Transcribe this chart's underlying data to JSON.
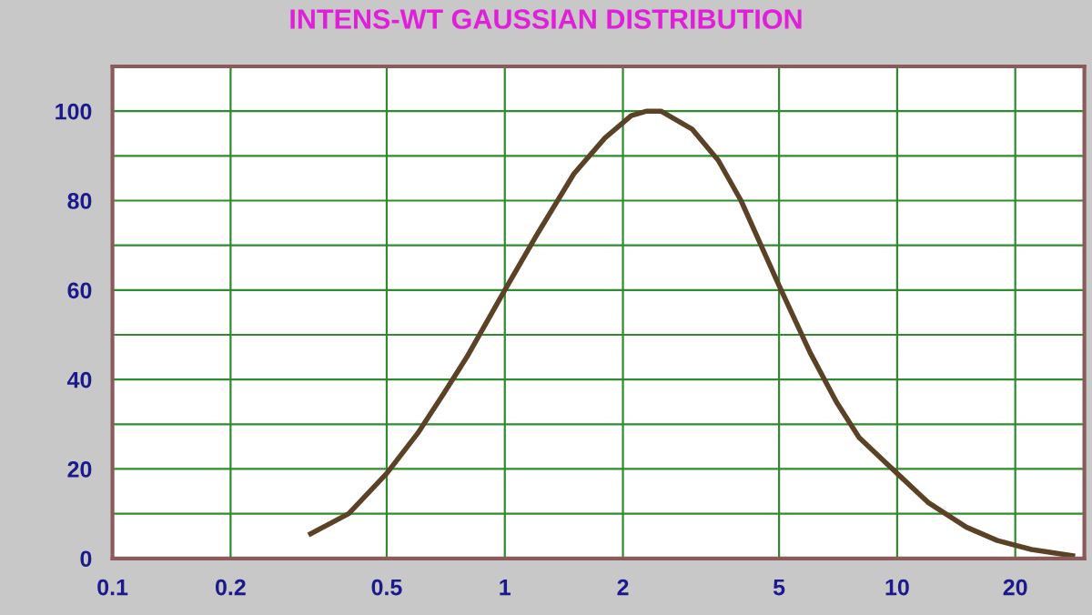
{
  "chart_data": {
    "type": "line",
    "title": "INTENS-WT GAUSSIAN DISTRIBUTION",
    "x": [
      0.32,
      0.4,
      0.5,
      0.6,
      0.7,
      0.8,
      1.0,
      1.2,
      1.5,
      1.8,
      2.1,
      2.3,
      2.5,
      3.0,
      3.5,
      4.0,
      5.0,
      6.0,
      7.0,
      8.0,
      10,
      12,
      15,
      18,
      22,
      28
    ],
    "series": [
      {
        "color": "#5b4226",
        "values": [
          5.5,
          10,
          19,
          28,
          37,
          45,
          60,
          72,
          86,
          94,
          99,
          100,
          100,
          96,
          89,
          80,
          61,
          46,
          35,
          27,
          19,
          12.5,
          7,
          4,
          2,
          0.6
        ]
      }
    ],
    "log": "x",
    "xlim": [
      0.1,
      30
    ],
    "xticks": [
      0.1,
      0.2,
      0.5,
      1,
      2,
      5,
      10,
      20
    ],
    "ylim": [
      0,
      110
    ],
    "yticks": [
      0,
      {
        "value": 10,
        "label": null
      },
      20,
      {
        "value": 30,
        "label": null
      },
      40,
      {
        "value": 50,
        "label": null
      },
      60,
      {
        "value": 70,
        "label": null
      },
      80,
      {
        "value": 90,
        "label": null
      },
      100,
      {
        "value": 110,
        "label": null
      }
    ],
    "grid": true,
    "marker": "none",
    "line_style": "solid"
  }
}
